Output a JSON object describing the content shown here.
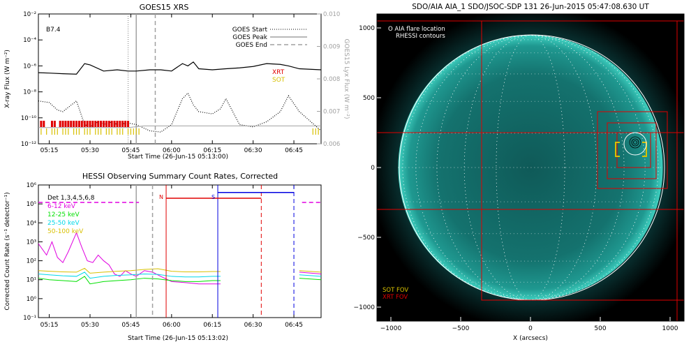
{
  "colors": {
    "red": "#e00000",
    "green": "#00e000",
    "cyan": "#00d8e8",
    "yellow": "#d8c000",
    "magenta": "#e000e0",
    "blue": "#0000e0",
    "grey": "#a0a0a0",
    "disk": "#1a8a82"
  },
  "chart_data": [
    {
      "type": "line",
      "title": "GOES15 XRS",
      "xlabel": "Start Time (26-Jun-15 05:13:00)",
      "ylabel": "X-ray Flux (W m⁻²)",
      "y2label": "GOES15 Lyx Flux (W m⁻²)",
      "xlim": [
        "05:11",
        "06:55"
      ],
      "xticks": [
        "05:15",
        "05:30",
        "05:45",
        "06:00",
        "06:15",
        "06:30",
        "06:45"
      ],
      "y_log": true,
      "ylim": [
        1e-12,
        0.01
      ],
      "yticks": [
        "10⁻¹²",
        "10⁻¹⁰",
        "10⁻⁸",
        "10⁻⁶",
        "10⁻⁴",
        "10⁻²"
      ],
      "y2lim": [
        0.006,
        0.01
      ],
      "y2ticks": [
        "0.006",
        "0.007",
        "0.008",
        "0.009",
        "0.010"
      ],
      "annotation": "B7.4",
      "markers": [
        {
          "name": "GOES Start",
          "time": "05:44",
          "style": "dotted"
        },
        {
          "name": "GOES Peak",
          "time": "05:47",
          "style": "solid"
        },
        {
          "name": "GOES End",
          "time": "05:54",
          "style": "dashed"
        }
      ],
      "series": [
        {
          "name": "",
          "style": "solid",
          "times": [
            "05:11",
            "05:15",
            "05:20",
            "05:25",
            "05:28",
            "05:30",
            "05:35",
            "05:40",
            "05:44",
            "05:47",
            "05:52",
            "05:56",
            "06:00",
            "06:04",
            "06:06",
            "06:08",
            "06:10",
            "06:15",
            "06:20",
            "06:25",
            "06:30",
            "06:35",
            "06:40",
            "06:43",
            "06:47",
            "06:55"
          ],
          "values": [
            3e-07,
            2.8e-07,
            2.5e-07,
            2.3e-07,
            1.5e-06,
            1.2e-06,
            4e-07,
            5e-07,
            4e-07,
            4e-07,
            5e-07,
            5e-07,
            4e-07,
            1.5e-06,
            1e-06,
            2e-06,
            6e-07,
            5e-07,
            6e-07,
            7e-07,
            9e-07,
            1.5e-06,
            1.3e-06,
            1e-06,
            6e-07,
            5e-07
          ]
        },
        {
          "name": "",
          "style": "dotted",
          "times": [
            "05:11",
            "05:15",
            "05:18",
            "05:20",
            "05:25",
            "05:28",
            "05:30",
            "05:33",
            "05:36",
            "05:38",
            "05:40",
            "05:44",
            "05:47",
            "05:52",
            "05:56",
            "06:00",
            "06:04",
            "06:06",
            "06:08",
            "06:10",
            "06:15",
            "06:18",
            "06:20",
            "06:25",
            "06:30",
            "06:35",
            "06:40",
            "06:43",
            "06:47",
            "06:55"
          ],
          "values": [
            2e-09,
            1.5e-09,
            4e-10,
            3e-10,
            2e-09,
            3e-11,
            2e-11,
            5e-11,
            3e-11,
            5e-11,
            3e-11,
            4e-11,
            3e-11,
            1e-11,
            8e-12,
            3e-11,
            3e-09,
            8e-09,
            1e-09,
            3e-10,
            2e-10,
            5e-10,
            3e-09,
            3e-11,
            2e-11,
            5e-11,
            3e-10,
            5e-09,
            3e-10,
            1e-11
          ]
        },
        {
          "name": "",
          "style": "grey",
          "times": [
            "05:11",
            "05:44",
            "05:50",
            "06:55"
          ],
          "values": [
            0.0065,
            0.0065,
            0.00655,
            0.00655
          ]
        }
      ],
      "legend": [
        "GOES Start",
        "GOES Peak",
        "GOES End"
      ],
      "side_labels": [
        {
          "text": "XRT",
          "color": "red"
        },
        {
          "text": "SOT",
          "color": "yellow"
        }
      ],
      "xrt_ticks": [
        "05:12",
        "05:13",
        "05:16",
        "05:17",
        "05:19",
        "05:20",
        "05:21",
        "05:22",
        "05:23",
        "05:24",
        "05:25",
        "05:26",
        "05:27",
        "05:28",
        "05:29",
        "05:30",
        "05:31",
        "05:32",
        "05:33",
        "05:34",
        "05:35",
        "05:36",
        "05:37",
        "05:38",
        "05:39",
        "05:40",
        "05:41",
        "05:42",
        "05:43",
        "05:44"
      ],
      "sot_ticks": [
        "05:12",
        "05:14",
        "05:16",
        "05:17",
        "05:18",
        "05:20",
        "05:21",
        "05:22",
        "05:24",
        "05:25",
        "05:26",
        "05:28",
        "05:29",
        "05:30",
        "05:32",
        "05:33",
        "05:34",
        "05:36",
        "05:37",
        "05:38",
        "05:40",
        "05:41",
        "05:42",
        "05:44",
        "05:45",
        "05:46",
        "05:47",
        "05:48",
        "06:52",
        "06:53",
        "06:54"
      ]
    },
    {
      "type": "line",
      "title": "HESSI Observing Summary Count Rates, Corrected",
      "xlabel": "Start Time (26-Jun-15 05:13:02)",
      "ylabel": "Corrected Count Rate (s⁻¹ detector⁻¹)",
      "xlim": [
        "05:11",
        "06:55"
      ],
      "xticks": [
        "05:15",
        "05:30",
        "05:45",
        "06:00",
        "06:15",
        "06:30",
        "06:45"
      ],
      "y_log": true,
      "ylim": [
        0.1,
        1000000.0
      ],
      "yticks": [
        "10⁻¹",
        "10⁰",
        "10¹",
        "10²",
        "10³",
        "10⁴",
        "10⁵",
        "10⁶"
      ],
      "legend_title": "Det 1,3,4,5,6,8",
      "annotations": [
        {
          "text": "N",
          "color": "red",
          "time": "05:58"
        },
        {
          "text": "S",
          "color": "blue",
          "time": "06:17"
        }
      ],
      "series": [
        {
          "name": "6-12 keV",
          "color": "magenta",
          "times": [
            "05:11",
            "05:14",
            "05:16",
            "05:18",
            "05:20",
            "05:22",
            "05:25",
            "05:27",
            "05:29",
            "05:31",
            "05:33",
            "05:35",
            "05:37",
            "05:39",
            "05:41",
            "05:43",
            "05:45",
            "05:47",
            "05:50",
            "05:53",
            "05:56",
            "06:00",
            "06:05",
            "06:10",
            "06:15",
            "06:18"
          ],
          "values": [
            800,
            200,
            1000,
            150,
            80,
            300,
            3000,
            500,
            100,
            80,
            200,
            100,
            60,
            20,
            15,
            30,
            20,
            15,
            30,
            25,
            15,
            8,
            7,
            6,
            6,
            6
          ]
        },
        {
          "name": "12-25 keV",
          "color": "green",
          "times": [
            "05:11",
            "05:15",
            "05:20",
            "05:25",
            "05:28",
            "05:30",
            "05:35",
            "05:40",
            "05:45",
            "05:50",
            "05:55",
            "06:00",
            "06:05",
            "06:10",
            "06:15",
            "06:18"
          ],
          "values": [
            12,
            10,
            9,
            8,
            15,
            6,
            8,
            9,
            10,
            12,
            11,
            9,
            8,
            8,
            9,
            9
          ]
        },
        {
          "name": "25-50 keV",
          "color": "cyan",
          "times": [
            "05:11",
            "05:15",
            "05:20",
            "05:25",
            "05:28",
            "05:30",
            "05:35",
            "05:40",
            "05:45",
            "05:50",
            "05:55",
            "06:00",
            "06:05",
            "06:10",
            "06:15",
            "06:18"
          ],
          "values": [
            20,
            18,
            16,
            15,
            25,
            12,
            15,
            17,
            18,
            20,
            19,
            15,
            14,
            14,
            15,
            15
          ]
        },
        {
          "name": "50-100 keV",
          "color": "yellow",
          "times": [
            "05:11",
            "05:15",
            "05:20",
            "05:25",
            "05:28",
            "05:30",
            "05:35",
            "05:40",
            "05:45",
            "05:50",
            "05:55",
            "06:00",
            "06:05",
            "06:10",
            "06:15",
            "06:18"
          ],
          "values": [
            30,
            28,
            26,
            25,
            40,
            22,
            25,
            28,
            30,
            35,
            38,
            28,
            26,
            26,
            27,
            27
          ]
        }
      ],
      "series_after": [
        {
          "color": "magenta",
          "times": [
            "06:47",
            "06:55"
          ],
          "values": [
            25,
            20
          ]
        },
        {
          "color": "green",
          "times": [
            "06:47",
            "06:55"
          ],
          "values": [
            12,
            10
          ]
        },
        {
          "color": "cyan",
          "times": [
            "06:47",
            "06:55"
          ],
          "values": [
            18,
            15
          ]
        },
        {
          "color": "yellow",
          "times": [
            "06:47",
            "06:55"
          ],
          "values": [
            30,
            25
          ]
        }
      ],
      "intervals": [
        {
          "color": "magenta",
          "style": "dashed",
          "start": "05:11",
          "end": "05:48",
          "value": 120000.0
        },
        {
          "color": "red",
          "style": "solid",
          "start": "05:58",
          "end": "06:33",
          "value": 200000.0
        },
        {
          "color": "blue",
          "style": "solid",
          "start": "06:17",
          "end": "06:45",
          "value": 400000.0
        },
        {
          "color": "magenta",
          "style": "dashed",
          "start": "06:48",
          "end": "06:55",
          "value": 120000.0
        }
      ],
      "vlines": [
        {
          "time": "05:47",
          "color": "grey",
          "style": "solid"
        },
        {
          "time": "05:53",
          "color": "grey",
          "style": "dashed"
        },
        {
          "time": "05:58",
          "color": "red",
          "style": "solid"
        },
        {
          "time": "06:17",
          "color": "blue",
          "style": "solid"
        },
        {
          "time": "06:33",
          "color": "red",
          "style": "dashed"
        },
        {
          "time": "06:45",
          "color": "blue",
          "style": "dashed"
        }
      ]
    },
    {
      "type": "image",
      "title": "SDO/AIA AIA_1 SDO/JSOC-SDP 131 26-Jun-2015 05:47:08.630 UT",
      "xlabel": "X (arcsecs)",
      "ylabel": "",
      "xlim": [
        -1100,
        1100
      ],
      "ylim": [
        -1100,
        1100
      ],
      "xticks": [
        -1000,
        -500,
        0,
        500,
        1000
      ],
      "yticks": [
        -1000,
        -500,
        0,
        500,
        1000
      ],
      "solar_radius": 948,
      "legend_top": [
        "O AIA flare location",
        "RHESSI contours"
      ],
      "legend_bottom": [
        {
          "text": "SOT FOV",
          "color": "yellow"
        },
        {
          "text": "XRT FOV",
          "color": "red"
        }
      ],
      "flare_location": {
        "x": 750,
        "y": 170
      },
      "xrt_fov": [
        {
          "x0": -1150,
          "x1": 1050,
          "y0": -1100,
          "y1": 1050
        },
        {
          "x0": -350,
          "x1": 1100,
          "y0": -950,
          "y1": 1050
        },
        {
          "x0": -1150,
          "x1": 1100,
          "y0": -300,
          "y1": 250
        },
        {
          "x0": 480,
          "x1": 980,
          "y0": -150,
          "y1": 400
        },
        {
          "x0": 550,
          "x1": 900,
          "y0": -80,
          "y1": 320
        },
        {
          "x0": 620,
          "x1": 860,
          "y0": 0,
          "y1": 250
        }
      ],
      "sot_fov": {
        "x0": 610,
        "x1": 830,
        "y0": 80,
        "y1": 180
      }
    }
  ]
}
